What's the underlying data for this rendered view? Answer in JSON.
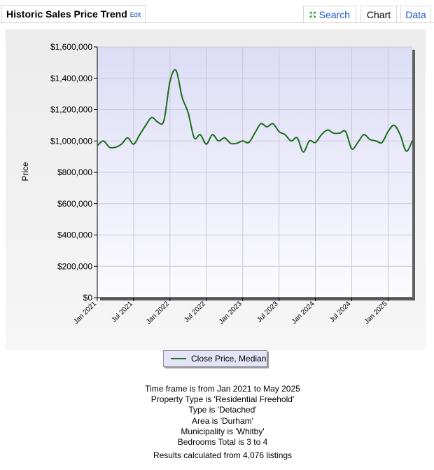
{
  "header": {
    "title": "Historic Sales Price Trend",
    "edit_label": "Edit",
    "tabs": {
      "search": "Search",
      "chart": "Chart",
      "data": "Data"
    },
    "active_tab": "Chart"
  },
  "colors": {
    "line": "#1b6e1b",
    "plot_background_top": "#dcdcf6",
    "plot_background_bottom": "#fcfcfe",
    "grid": "#c8c8d8",
    "link": "#1a55c8"
  },
  "icons": {
    "search": "expand-arrows-icon"
  },
  "chart_data": {
    "type": "line",
    "title": "",
    "xlabel": "",
    "ylabel": "Price",
    "ylim": [
      0,
      1600000
    ],
    "y_ticks": [
      0,
      200000,
      400000,
      600000,
      800000,
      1000000,
      1200000,
      1400000,
      1600000
    ],
    "y_tick_labels": [
      "$0",
      "$200,000",
      "$400,000",
      "$600,000",
      "$800,000",
      "$1,000,000",
      "$1,200,000",
      "$1,400,000",
      "$1,600,000"
    ],
    "x_tick_labels": [
      "Jan 2021",
      "Jul 2021",
      "Jan 2022",
      "Jul 2022",
      "Jan 2023",
      "Jul 2023",
      "Jan 2024",
      "Jul 2024",
      "Jan 2025"
    ],
    "grid": true,
    "legend_position": "bottom",
    "series": [
      {
        "name": "Close Price, Median",
        "x": [
          "Jan 2021",
          "Feb 2021",
          "Mar 2021",
          "Apr 2021",
          "May 2021",
          "Jun 2021",
          "Jul 2021",
          "Aug 2021",
          "Sep 2021",
          "Oct 2021",
          "Nov 2021",
          "Dec 2021",
          "Jan 2022",
          "Feb 2022",
          "Mar 2022",
          "Apr 2022",
          "May 2022",
          "Jun 2022",
          "Jul 2022",
          "Aug 2022",
          "Sep 2022",
          "Oct 2022",
          "Nov 2022",
          "Dec 2022",
          "Jan 2023",
          "Feb 2023",
          "Mar 2023",
          "Apr 2023",
          "May 2023",
          "Jun 2023",
          "Jul 2023",
          "Aug 2023",
          "Sep 2023",
          "Oct 2023",
          "Nov 2023",
          "Dec 2023",
          "Jan 2024",
          "Feb 2024",
          "Mar 2024",
          "Apr 2024",
          "May 2024",
          "Jun 2024",
          "Jul 2024",
          "Aug 2024",
          "Sep 2024",
          "Oct 2024",
          "Nov 2024",
          "Dec 2024",
          "Jan 2025",
          "Feb 2025",
          "Mar 2025",
          "Apr 2025",
          "May 2025"
        ],
        "values": [
          970000,
          1000000,
          960000,
          960000,
          980000,
          1020000,
          980000,
          1040000,
          1100000,
          1150000,
          1120000,
          1130000,
          1380000,
          1450000,
          1280000,
          1180000,
          1020000,
          1040000,
          980000,
          1040000,
          1000000,
          1020000,
          985000,
          985000,
          1000000,
          990000,
          1050000,
          1110000,
          1090000,
          1110000,
          1060000,
          1040000,
          1000000,
          1020000,
          930000,
          1000000,
          990000,
          1040000,
          1070000,
          1050000,
          1050000,
          1060000,
          950000,
          990000,
          1040000,
          1010000,
          1000000,
          990000,
          1060000,
          1100000,
          1040000,
          935000,
          1000000
        ]
      }
    ]
  },
  "legend": {
    "label": "Close Price, Median"
  },
  "info_lines": [
    "Time frame is from Jan 2021 to May 2025",
    "Property Type is 'Residential Freehold'",
    "Type is 'Detached'",
    "Area is 'Durham'",
    "Municipality is 'Whitby'",
    "Bedrooms Total is 3 to 4"
  ],
  "results": "Results calculated from 4,076 listings"
}
